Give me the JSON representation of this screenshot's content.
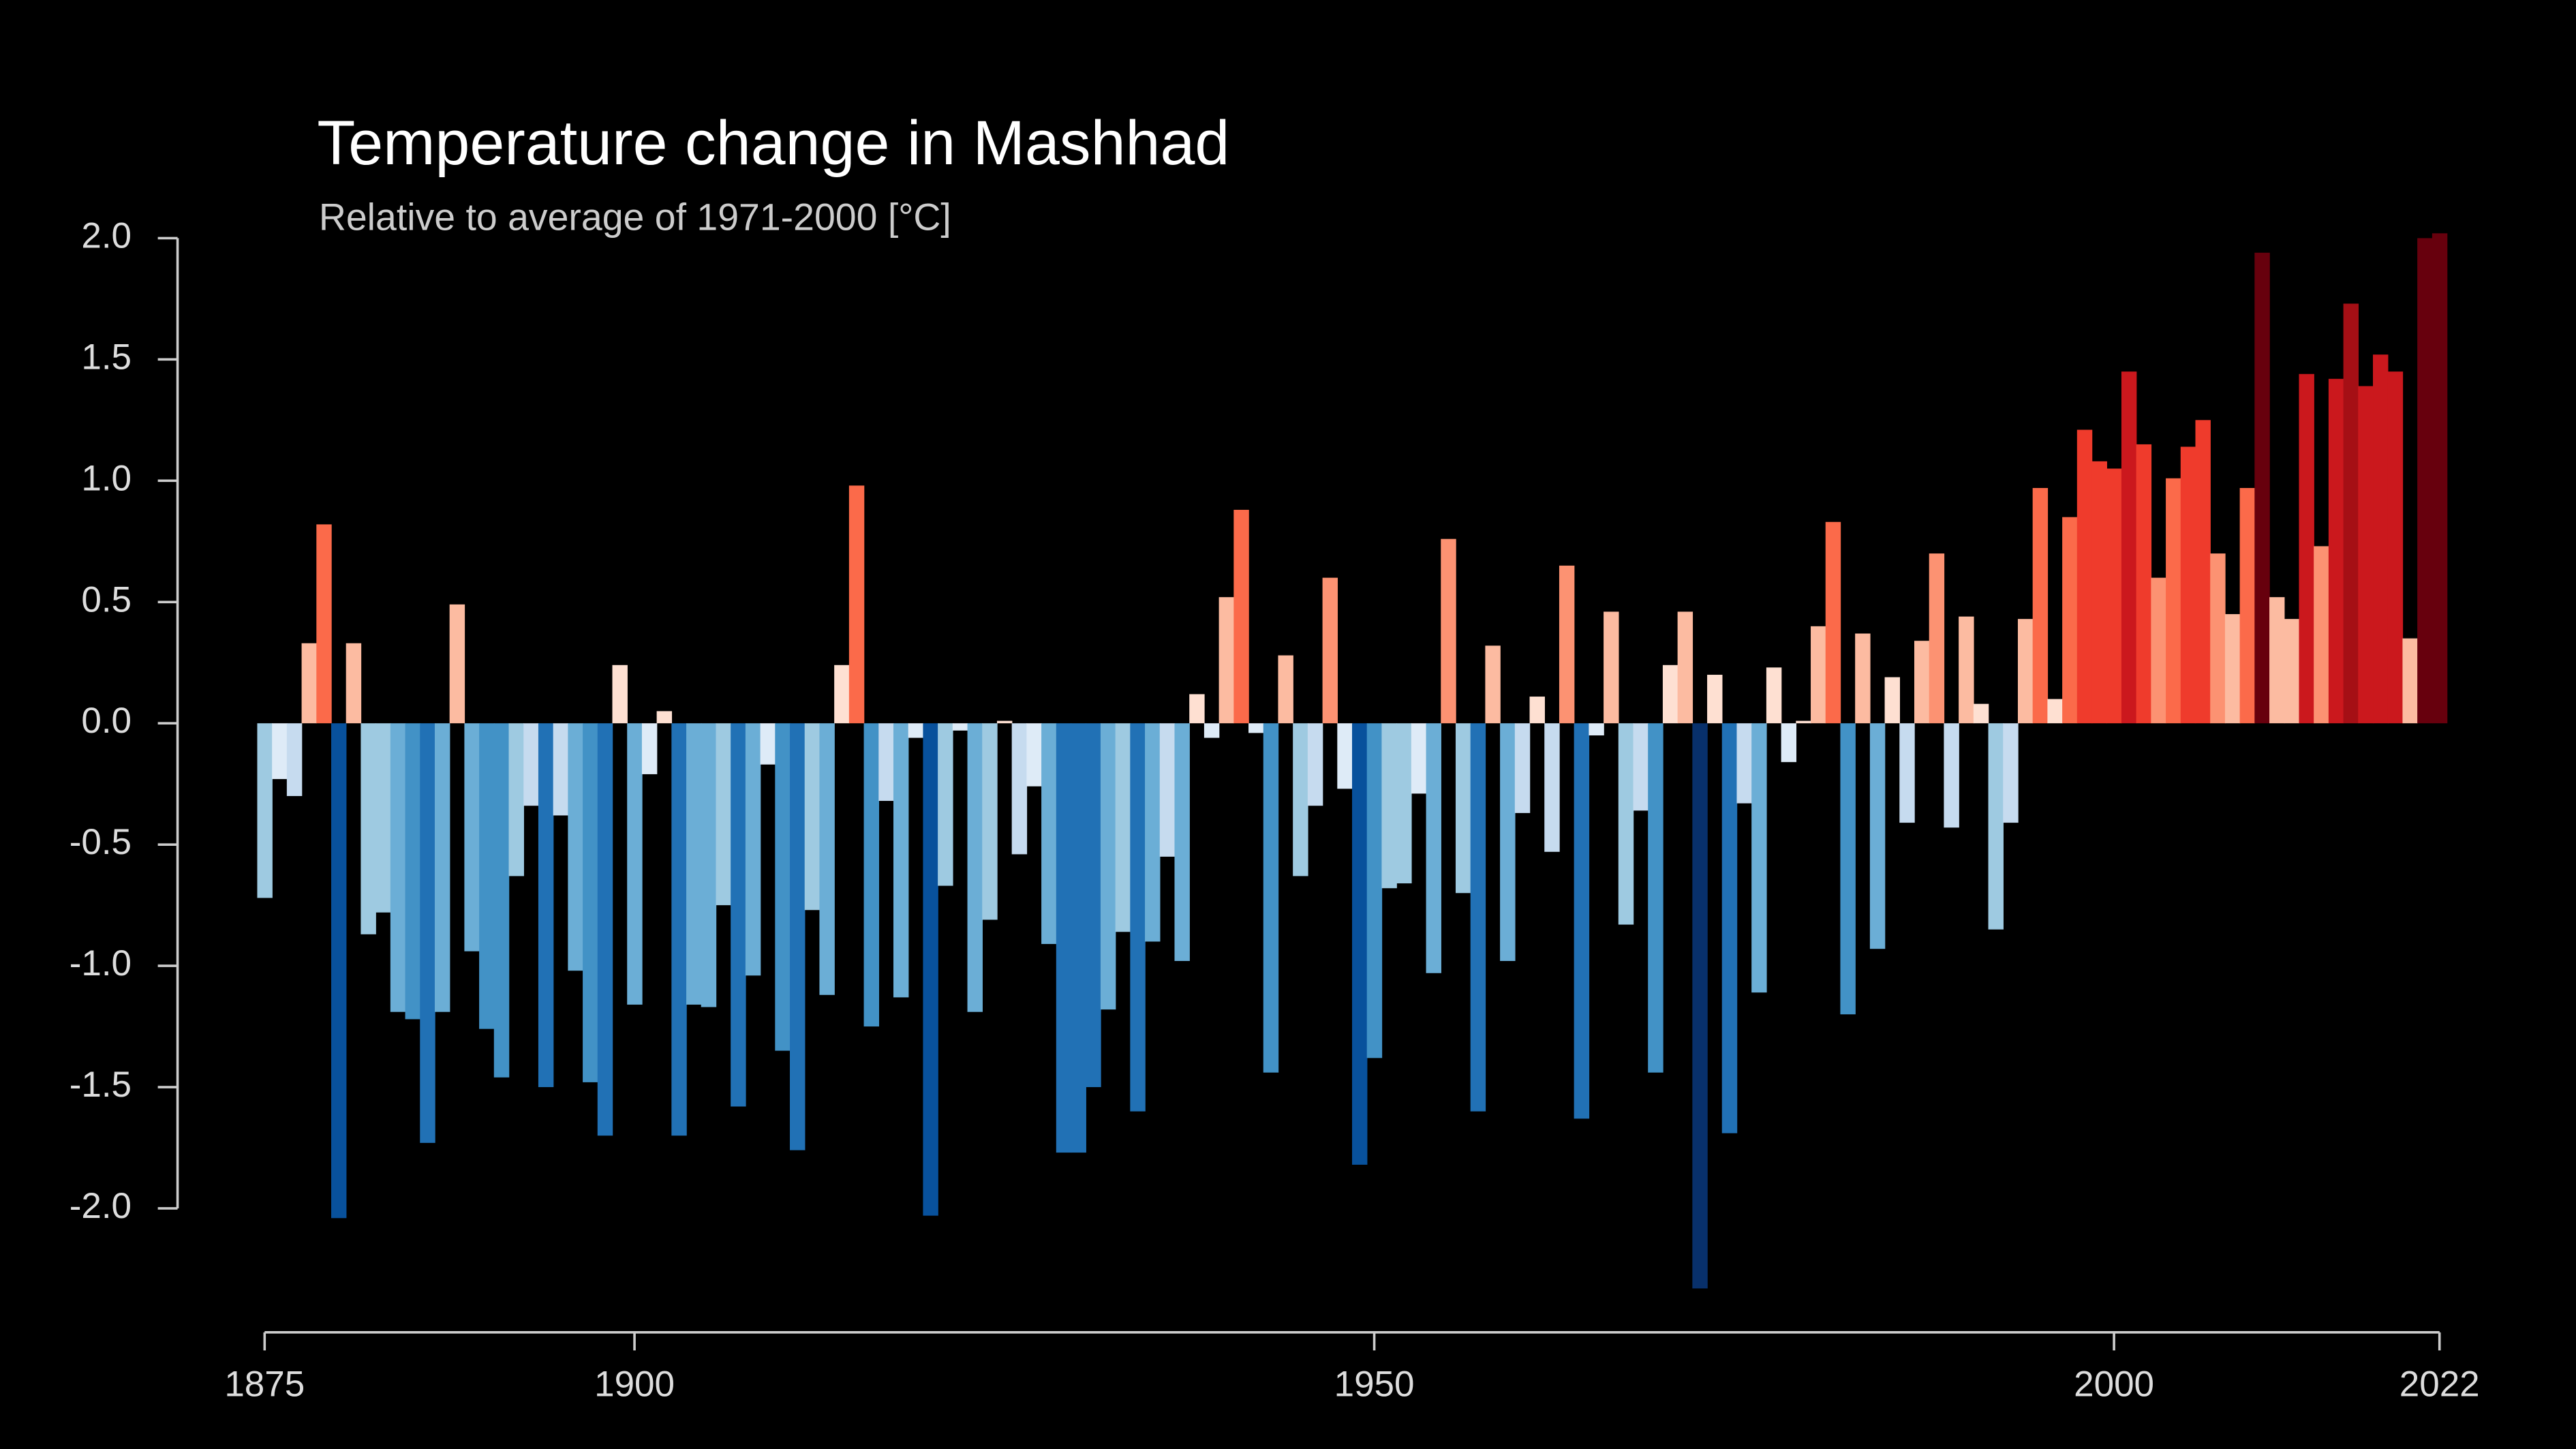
{
  "chart_data": {
    "type": "bar",
    "title": "Temperature change in Mashhad",
    "subtitle": "Relative to average of 1971-2000  [°C]",
    "x": [
      1875,
      1876,
      1877,
      1878,
      1879,
      1880,
      1881,
      1882,
      1883,
      1884,
      1885,
      1886,
      1887,
      1888,
      1889,
      1890,
      1891,
      1892,
      1893,
      1894,
      1895,
      1896,
      1897,
      1898,
      1899,
      1900,
      1901,
      1902,
      1903,
      1904,
      1905,
      1906,
      1907,
      1908,
      1909,
      1910,
      1911,
      1912,
      1913,
      1914,
      1915,
      1916,
      1917,
      1918,
      1919,
      1920,
      1921,
      1922,
      1923,
      1924,
      1925,
      1926,
      1927,
      1928,
      1929,
      1930,
      1931,
      1932,
      1933,
      1934,
      1935,
      1936,
      1937,
      1938,
      1939,
      1940,
      1941,
      1942,
      1943,
      1944,
      1945,
      1946,
      1947,
      1948,
      1949,
      1950,
      1951,
      1952,
      1953,
      1954,
      1955,
      1956,
      1957,
      1958,
      1959,
      1960,
      1961,
      1962,
      1963,
      1964,
      1965,
      1966,
      1967,
      1968,
      1969,
      1970,
      1971,
      1972,
      1973,
      1974,
      1975,
      1976,
      1977,
      1978,
      1979,
      1980,
      1981,
      1982,
      1983,
      1984,
      1985,
      1986,
      1987,
      1988,
      1989,
      1990,
      1991,
      1992,
      1993,
      1994,
      1995,
      1996,
      1997,
      1998,
      1999,
      2000,
      2001,
      2002,
      2003,
      2004,
      2005,
      2006,
      2007,
      2008,
      2009,
      2010,
      2011,
      2012,
      2013,
      2014,
      2015,
      2016,
      2017,
      2018,
      2019,
      2020,
      2021,
      2022
    ],
    "values": [
      -0.72,
      -0.23,
      -0.3,
      0.33,
      0.82,
      -2.04,
      0.33,
      -0.87,
      -0.78,
      -1.19,
      -1.22,
      -1.73,
      -1.19,
      0.49,
      -0.94,
      -1.26,
      -1.46,
      -0.63,
      -0.34,
      -1.5,
      -0.38,
      -1.02,
      -1.48,
      -1.7,
      0.24,
      -1.16,
      -0.21,
      0.05,
      -1.7,
      -1.16,
      -1.17,
      -0.75,
      -1.58,
      -1.04,
      -0.17,
      -1.35,
      -1.76,
      -0.77,
      -1.12,
      0.24,
      0.98,
      -1.25,
      -0.32,
      -1.13,
      -0.06,
      -2.03,
      -0.67,
      -0.03,
      -1.19,
      -0.81,
      0.01,
      -0.54,
      -0.26,
      -0.91,
      -1.77,
      -1.77,
      -1.5,
      -1.18,
      -0.86,
      -1.6,
      -0.9,
      -0.55,
      -0.98,
      0.12,
      -0.06,
      0.52,
      0.88,
      -0.04,
      -1.44,
      0.28,
      -0.63,
      -0.34,
      0.6,
      -0.27,
      -1.82,
      -1.38,
      -0.68,
      -0.66,
      -0.29,
      -1.03,
      0.76,
      -0.7,
      -1.6,
      0.32,
      -0.98,
      -0.37,
      0.11,
      -0.53,
      0.65,
      -1.63,
      -0.05,
      0.46,
      -0.83,
      -0.36,
      -1.44,
      0.24,
      0.46,
      -2.33,
      0.2,
      -1.69,
      -0.33,
      -1.11,
      0.23,
      -0.16,
      0.01,
      0.4,
      0.83,
      -1.2,
      0.37,
      -0.93,
      0.19,
      -0.41,
      0.34,
      0.7,
      -0.43,
      0.44,
      0.08,
      -0.85,
      -0.41,
      0.43,
      0.97,
      0.1,
      0.85,
      1.21,
      1.08,
      1.05,
      1.45,
      1.15,
      0.6,
      1.01,
      1.14,
      1.25,
      0.7,
      0.45,
      0.97,
      1.94,
      0.52,
      0.43,
      1.44,
      0.73,
      1.42,
      1.73,
      1.39,
      1.52,
      1.45,
      0.35,
      2.0,
      2.02
    ],
    "colormap": [
      "#08306b",
      "#08519c",
      "#2171b5",
      "#4292c6",
      "#6baed6",
      "#9ecae1",
      "#c6dbef",
      "#deebf7",
      "#fee0d2",
      "#fcbba1",
      "#fc9272",
      "#fb6a4a",
      "#ef3b2c",
      "#cb181d",
      "#a50f15",
      "#67000d"
    ],
    "xlim": [
      1875,
      2022
    ],
    "xticks": [
      1875,
      1900,
      1950,
      2000,
      2022
    ],
    "ylim": [
      -2.4,
      2.1
    ],
    "yticks": [
      {
        "value": 2,
        "label": "2.0"
      },
      {
        "value": 1.5,
        "label": "1.5"
      },
      {
        "value": 1,
        "label": "1.0"
      },
      {
        "value": 0.5,
        "label": "0.5"
      },
      {
        "value": 0,
        "label": "0.0"
      },
      {
        "value": -0.5,
        "label": "-0.5"
      },
      {
        "value": -1,
        "label": "-1.0"
      },
      {
        "value": -1.5,
        "label": "-1.5"
      },
      {
        "value": -2,
        "label": "-2.0"
      }
    ]
  }
}
